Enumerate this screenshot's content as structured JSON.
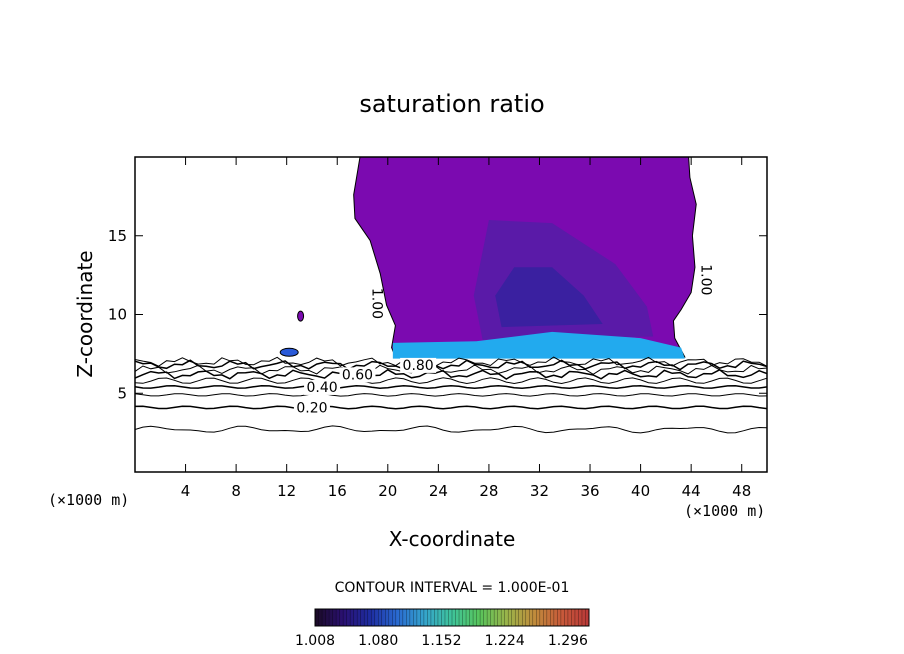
{
  "chart_data": {
    "type": "contour",
    "title": "saturation ratio",
    "xlabel": "X-coordinate",
    "ylabel": "Z-coordinate",
    "x_unit": "(×1000 m)",
    "y_unit": "(×1000 m)",
    "xlim": [
      0,
      50
    ],
    "ylim": [
      0,
      20
    ],
    "x_ticks": [
      4,
      8,
      12,
      16,
      20,
      24,
      28,
      32,
      36,
      40,
      44,
      48
    ],
    "y_ticks": [
      5,
      10,
      15
    ],
    "contour_interval_text": "CONTOUR INTERVAL = 1.000E-01",
    "contour_lines": [
      {
        "level": 0.1,
        "label": "",
        "z": 2.7
      },
      {
        "level": 0.2,
        "label": "0.20",
        "z": 4.1
      },
      {
        "level": 0.3,
        "label": "",
        "z": 4.9
      },
      {
        "level": 0.4,
        "label": "0.40",
        "z": 5.4
      },
      {
        "level": 0.5,
        "label": "",
        "z": 5.8
      },
      {
        "level": 0.6,
        "label": "0.60",
        "z": 6.2
      },
      {
        "level": 0.7,
        "label": "",
        "z": 6.5
      },
      {
        "level": 0.8,
        "label": "0.80",
        "z": 6.8
      },
      {
        "level": 0.9,
        "label": "",
        "z": 7.0
      }
    ],
    "cloud_contour_label": "1.00",
    "colorbar": {
      "min": 1.008,
      "max": 1.32,
      "tick_labels": [
        "1.008",
        "1.080",
        "1.152",
        "1.224",
        "1.296"
      ],
      "colors": [
        "#1a0a24",
        "#2a1070",
        "#1e2ca0",
        "#2a6ad0",
        "#35a4cc",
        "#3fc49a",
        "#58c45c",
        "#9ab44a",
        "#c08c3c",
        "#c85a3a",
        "#b83838"
      ]
    },
    "fill_colors": {
      "anvil": "#7b0ab0",
      "core": "#5a1aa8",
      "inner": "#3a20a0",
      "base": "#22aaee"
    }
  }
}
